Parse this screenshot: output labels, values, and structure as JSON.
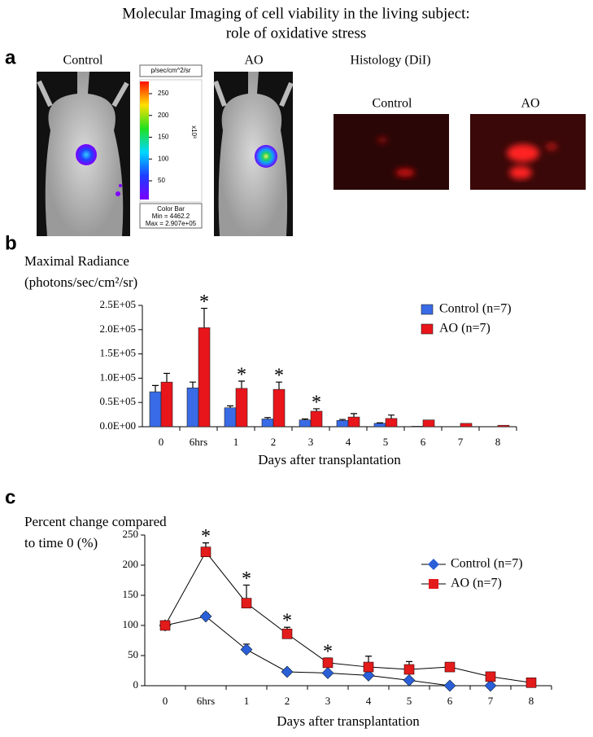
{
  "title": [
    "Molecular Imaging of cell viability in the living subject:",
    "role of oxidative stress"
  ],
  "panel_a": {
    "label": "a",
    "imaging": {
      "labels": [
        "Control",
        "AO"
      ],
      "colorbar": {
        "unit": "p/sec/cm^2/sr",
        "ticks": [
          250,
          200,
          150,
          100,
          50
        ],
        "exponent": "x10³",
        "footer": [
          "Color Bar",
          "Min = 4462.2",
          "Max = 2.907e+05"
        ]
      }
    },
    "histology": {
      "title": "Histology (DiI)",
      "labels": [
        "Control",
        "AO"
      ]
    }
  },
  "chart_data": [
    {
      "type": "bar",
      "panel_label": "b",
      "ylabel": [
        "Maximal Radiance",
        "(photons/sec/cm²/sr)"
      ],
      "xlabel": "Days after transplantation",
      "categories": [
        "0",
        "6hrs",
        "1",
        "2",
        "3",
        "4",
        "5",
        "6",
        "7",
        "8"
      ],
      "series": [
        {
          "name": "Control (n=7)",
          "color": "#3a6be6",
          "values": [
            72000,
            80000,
            39000,
            16000,
            14000,
            13000,
            7000,
            1000,
            0,
            0
          ],
          "errors": [
            13000,
            12000,
            4000,
            3000,
            2000,
            2000,
            1000,
            0,
            0,
            0
          ]
        },
        {
          "name": "AO (n=7)",
          "color": "#e8151b",
          "values": [
            92000,
            204000,
            79000,
            77000,
            32000,
            20000,
            17000,
            14000,
            7000,
            3000
          ],
          "errors": [
            18000,
            40000,
            15000,
            15000,
            5000,
            7000,
            7000,
            0,
            0,
            0
          ]
        }
      ],
      "significance": [
        null,
        "*",
        "*",
        "*",
        "*",
        null,
        null,
        null,
        null,
        null
      ],
      "ylim": [
        0,
        250000
      ],
      "yticks": [
        {
          "value": 0,
          "label": "0.0E+00"
        },
        {
          "value": 50000,
          "label": "0.5E+05"
        },
        {
          "value": 100000,
          "label": "1.0E+05"
        },
        {
          "value": 150000,
          "label": "1.5E+05"
        },
        {
          "value": 200000,
          "label": "2.0E+05"
        },
        {
          "value": 250000,
          "label": "2.5E+05"
        }
      ],
      "legend": "upper right"
    },
    {
      "type": "line",
      "panel_label": "c",
      "ylabel": [
        "Percent change compared",
        "to time 0 (%)"
      ],
      "xlabel": "Days after transplantation",
      "categories": [
        "0",
        "6hrs",
        "1",
        "2",
        "3",
        "4",
        "5",
        "6",
        "7",
        "8"
      ],
      "series": [
        {
          "name": "Control (n=7)",
          "color": "#2a5fd8",
          "marker": "diamond",
          "values": [
            100,
            115,
            60,
            23,
            21,
            17,
            9,
            0,
            0,
            null
          ],
          "errors": [
            null,
            5,
            9,
            4,
            null,
            null,
            null,
            null,
            null,
            null
          ]
        },
        {
          "name": "AO (n=7)",
          "color": "#e31b1b",
          "marker": "square",
          "values": [
            100,
            222,
            137,
            86,
            38,
            31,
            27,
            31,
            15,
            5
          ],
          "errors": [
            null,
            15,
            30,
            11,
            8,
            18,
            13,
            null,
            null,
            null
          ]
        }
      ],
      "significance": [
        null,
        "*",
        "*",
        "*",
        "*",
        null,
        null,
        null,
        null,
        null
      ],
      "ylim": [
        0,
        250
      ],
      "yticks": [
        0,
        50,
        100,
        150,
        200,
        250
      ],
      "legend": "upper right"
    }
  ]
}
